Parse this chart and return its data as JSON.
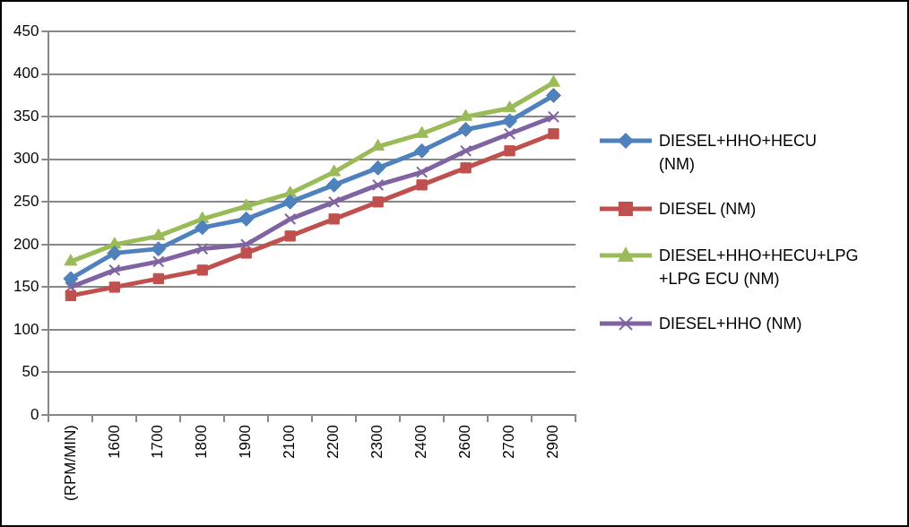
{
  "chart_data": {
    "type": "line",
    "categories": [
      "(RPM/MIN)",
      "1600",
      "1700",
      "1800",
      "1900",
      "2100",
      "2200",
      "2300",
      "2400",
      "2600",
      "2700",
      "2900"
    ],
    "series": [
      {
        "name": "DIESEL+HHO+HECU (NM)",
        "color": "#4f81bd",
        "marker": "diamond",
        "values": [
          160,
          190,
          195,
          220,
          230,
          250,
          270,
          290,
          310,
          335,
          345,
          375
        ]
      },
      {
        "name": "DIESEL (NM)",
        "color": "#c0504d",
        "marker": "square",
        "values": [
          140,
          150,
          160,
          170,
          190,
          210,
          230,
          250,
          270,
          290,
          310,
          330
        ]
      },
      {
        "name": "DIESEL+HHO+HECU+LPG +LPG ECU (NM)",
        "color": "#9bbb59",
        "marker": "triangle",
        "values": [
          180,
          200,
          210,
          230,
          245,
          260,
          285,
          315,
          330,
          350,
          360,
          390
        ]
      },
      {
        "name": "DIESEL+HHO (NM)",
        "color": "#8064a2",
        "marker": "cross",
        "values": [
          150,
          170,
          180,
          195,
          200,
          230,
          250,
          270,
          285,
          310,
          330,
          350
        ]
      }
    ],
    "ylim": [
      0,
      450
    ],
    "yticks": [
      0,
      50,
      100,
      150,
      200,
      250,
      300,
      350,
      400,
      450
    ],
    "grid": "y",
    "legend": "right",
    "line_style": "solid"
  }
}
